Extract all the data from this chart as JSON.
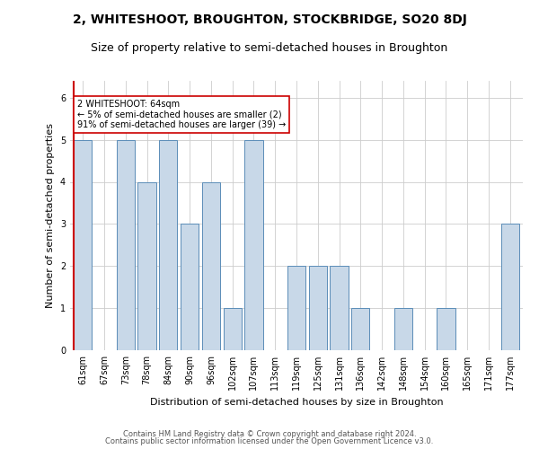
{
  "title": "2, WHITESHOOT, BROUGHTON, STOCKBRIDGE, SO20 8DJ",
  "subtitle": "Size of property relative to semi-detached houses in Broughton",
  "xlabel": "Distribution of semi-detached houses by size in Broughton",
  "ylabel": "Number of semi-detached properties",
  "categories": [
    "61sqm",
    "67sqm",
    "73sqm",
    "78sqm",
    "84sqm",
    "90sqm",
    "96sqm",
    "102sqm",
    "107sqm",
    "113sqm",
    "119sqm",
    "125sqm",
    "131sqm",
    "136sqm",
    "142sqm",
    "148sqm",
    "154sqm",
    "160sqm",
    "165sqm",
    "171sqm",
    "177sqm"
  ],
  "values": [
    5,
    0,
    5,
    4,
    5,
    3,
    4,
    1,
    5,
    0,
    2,
    2,
    2,
    1,
    0,
    1,
    0,
    1,
    0,
    0,
    3
  ],
  "bar_color": "#c8d8e8",
  "bar_edge_color": "#5b8db8",
  "marker_index": 0,
  "marker_color": "#cc0000",
  "annotation_line1": "2 WHITESHOOT: 64sqm",
  "annotation_line2": "← 5% of semi-detached houses are smaller (2)",
  "annotation_line3": "91% of semi-detached houses are larger (39) →",
  "annotation_box_color": "#ffffff",
  "annotation_box_edge": "#cc0000",
  "ylim": [
    0,
    6.4
  ],
  "yticks": [
    0,
    1,
    2,
    3,
    4,
    5,
    6
  ],
  "footer1": "Contains HM Land Registry data © Crown copyright and database right 2024.",
  "footer2": "Contains public sector information licensed under the Open Government Licence v3.0.",
  "bg_color": "#ffffff",
  "grid_color": "#cccccc",
  "title_fontsize": 10,
  "subtitle_fontsize": 9,
  "axis_label_fontsize": 8,
  "tick_fontsize": 7,
  "footer_fontsize": 6
}
